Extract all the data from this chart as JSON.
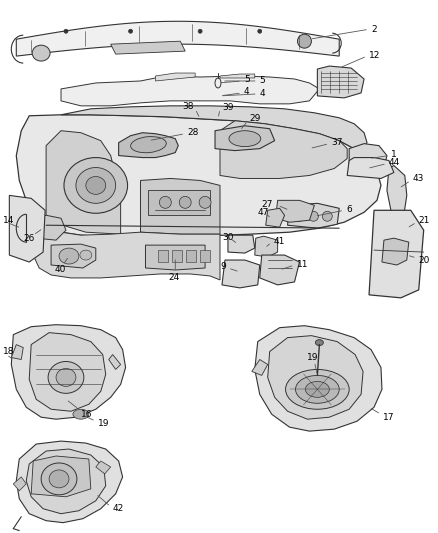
{
  "background_color": "#ffffff",
  "fig_width": 4.38,
  "fig_height": 5.33,
  "dpi": 100,
  "line_color": "#333333",
  "font_size": 6.5,
  "label_color": "#000000",
  "leader_color": "#555555"
}
